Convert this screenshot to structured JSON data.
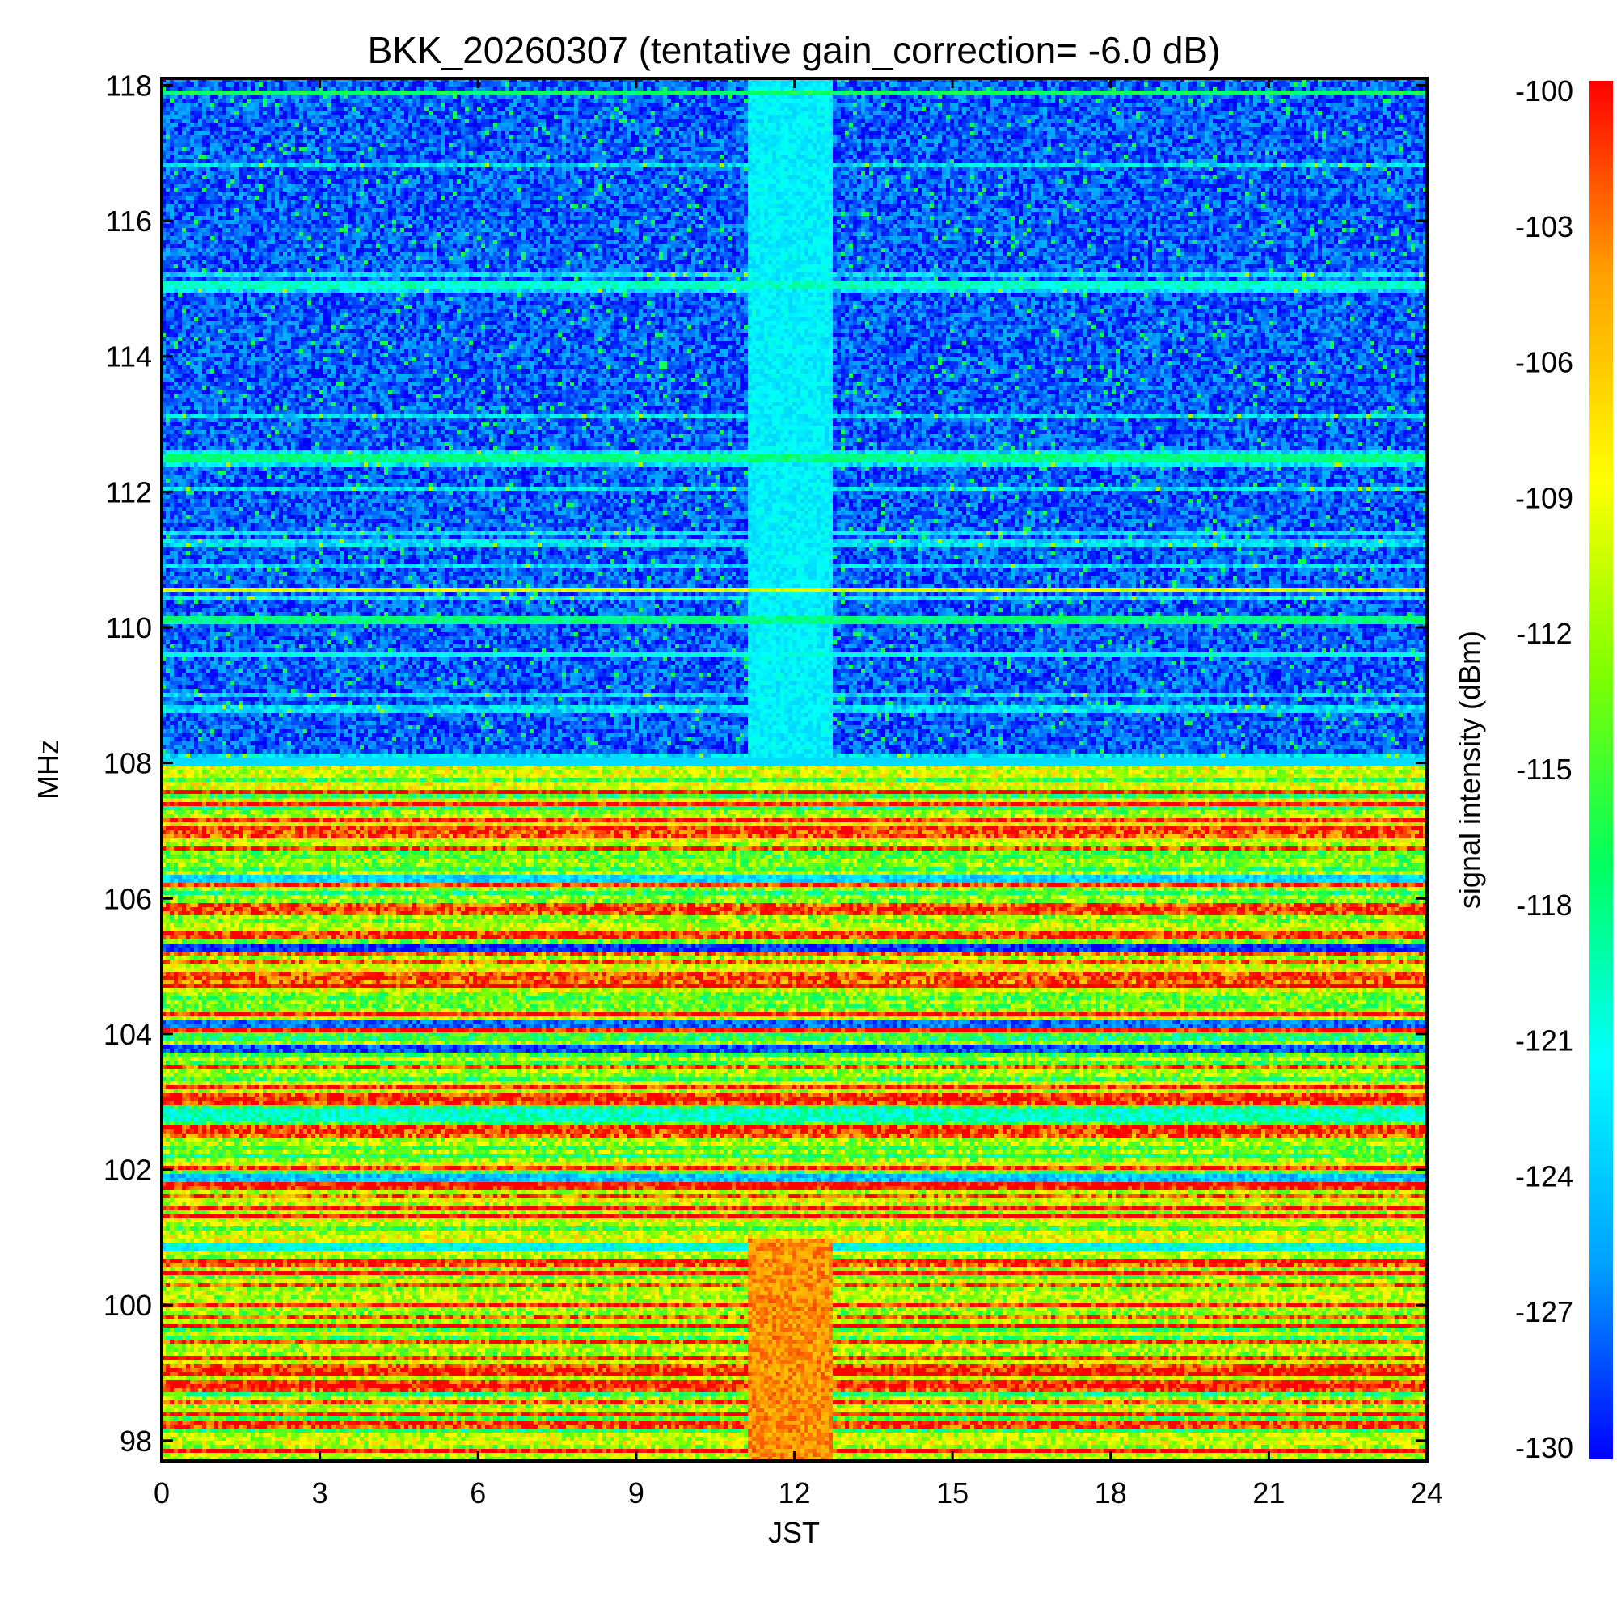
{
  "chart_data": {
    "type": "heatmap",
    "title": "BKK_20260307 (tentative gain_correction= -6.0 dB)",
    "xlabel": "JST",
    "ylabel": "MHz",
    "colorbar_label": "signal intensity (dBm)",
    "xlim": [
      0,
      24
    ],
    "ylim": [
      97.7,
      118.1
    ],
    "clim": [
      -130,
      -100
    ],
    "x_ticks": [
      0,
      3,
      6,
      9,
      12,
      15,
      18,
      21,
      24
    ],
    "x_tick_labels": [
      "0",
      "3",
      "6",
      "9",
      "12",
      "15",
      "18",
      "21",
      "24"
    ],
    "y_ticks": [
      98,
      100,
      102,
      104,
      106,
      108,
      110,
      112,
      114,
      116,
      118
    ],
    "y_tick_labels": [
      "98",
      "100",
      "102",
      "104",
      "106",
      "108",
      "110",
      "112",
      "114",
      "116",
      "118"
    ],
    "colorbar_ticks": [
      -100,
      -103,
      -106,
      -109,
      -112,
      -115,
      -118,
      -121,
      -124,
      -127,
      -130
    ],
    "colorbar_tick_labels": [
      "-100",
      "-103",
      "-106",
      "-109",
      "-112",
      "-115",
      "-118",
      "-121",
      "-124",
      "-127",
      "-130"
    ],
    "colormap": [
      "#0000ff",
      "#00a0ff",
      "#00ffff",
      "#00ff60",
      "#7fff00",
      "#ffff00",
      "#ffa000",
      "#ff0000"
    ],
    "background_levels_dbm": {
      "fm_band_98_108MHz": -104,
      "air_band_108_118MHz": -127.5,
      "gap_band_11_to_12.7JST_air": -122
    },
    "strong_carriers_mhz": [
      {
        "freq": 117.9,
        "level": -117
      },
      {
        "freq": 115.05,
        "level": -120
      },
      {
        "freq": 112.5,
        "level": -118
      },
      {
        "freq": 110.55,
        "level": -110
      },
      {
        "freq": 110.1,
        "level": -118
      },
      {
        "freq": 109.6,
        "level": -121
      }
    ],
    "weak_fm_channels_mhz": [
      {
        "freq": 106.3,
        "level": -123
      },
      {
        "freq": 105.3,
        "level": -129
      },
      {
        "freq": 104.15,
        "level": -127
      },
      {
        "freq": 103.8,
        "level": -128
      },
      {
        "freq": 102.8,
        "level": -120
      },
      {
        "freq": 101.9,
        "level": -124
      },
      {
        "freq": 100.85,
        "level": -121
      }
    ]
  }
}
